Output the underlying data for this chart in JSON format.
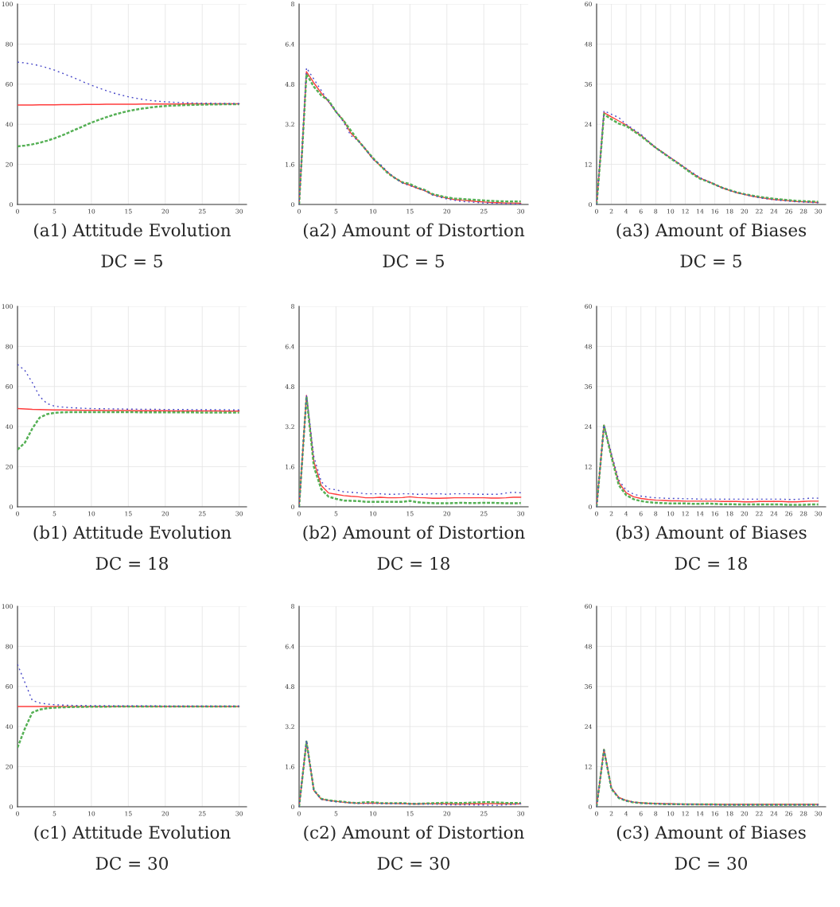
{
  "chart_data": [
    {
      "type": "line",
      "title": "(a1) Attitude Evolution",
      "subtitle": "DC = 5",
      "x": [
        0,
        1,
        2,
        3,
        4,
        5,
        6,
        7,
        8,
        9,
        10,
        11,
        12,
        13,
        14,
        15,
        16,
        17,
        18,
        19,
        20,
        21,
        22,
        23,
        24,
        25,
        26,
        27,
        28,
        29,
        30
      ],
      "xlim": [
        0,
        31
      ],
      "xticks": [
        0,
        5,
        10,
        15,
        20,
        25,
        30
      ],
      "ylim": [
        0,
        100
      ],
      "yticks": [
        0,
        20,
        40,
        60,
        80,
        100
      ],
      "grid": true,
      "series": [
        {
          "color": "#4848c8",
          "line_style": "dashed",
          "values": [
            71,
            70.6,
            70,
            69.2,
            68.2,
            67,
            65.6,
            64.1,
            62.6,
            61,
            59.5,
            58.1,
            56.8,
            55.6,
            54.6,
            53.7,
            53,
            52.4,
            51.9,
            51.5,
            51.2,
            51,
            50.8,
            50.7,
            50.6,
            50.5,
            50.5,
            50.4,
            50.4,
            50.3,
            50.3
          ]
        },
        {
          "color": "#ff3c3c",
          "line_style": "solid",
          "values": [
            49.6,
            49.6,
            49.6,
            49.7,
            49.7,
            49.7,
            49.8,
            49.8,
            49.8,
            49.9,
            49.9,
            49.9,
            50,
            50,
            50,
            50,
            50,
            50.1,
            50.1,
            50.1,
            50.1,
            50.1,
            50.1,
            50.2,
            50.2,
            50.2,
            50.2,
            50.2,
            50.2,
            50.2,
            50.2
          ]
        },
        {
          "color": "#55b055",
          "line_style": "dashed",
          "values": [
            29,
            29.4,
            30,
            30.8,
            31.8,
            33,
            34.4,
            36,
            37.6,
            39.2,
            40.8,
            42.2,
            43.5,
            44.7,
            45.7,
            46.6,
            47.3,
            47.9,
            48.4,
            48.8,
            49.1,
            49.3,
            49.5,
            49.6,
            49.7,
            49.8,
            49.9,
            49.9,
            50,
            50,
            50
          ]
        }
      ]
    },
    {
      "type": "line",
      "title": "(a2) Amount of Distortion",
      "subtitle": "DC = 5",
      "x": [
        0,
        1,
        2,
        3,
        4,
        5,
        6,
        7,
        8,
        9,
        10,
        11,
        12,
        13,
        14,
        15,
        16,
        17,
        18,
        19,
        20,
        21,
        22,
        23,
        24,
        25,
        26,
        27,
        28,
        29,
        30
      ],
      "xlim": [
        0,
        31
      ],
      "xticks": [
        0,
        5,
        10,
        15,
        20,
        25,
        30
      ],
      "ylim": [
        0,
        8
      ],
      "yticks": [
        0,
        1.6,
        3.2,
        4.8,
        6.4,
        8
      ],
      "grid": true,
      "series": [
        {
          "color": "#4848c8",
          "line_style": "dashed",
          "values": [
            0,
            5.45,
            5.0,
            4.55,
            4.1,
            3.7,
            3.3,
            2.75,
            2.55,
            2.2,
            1.8,
            1.6,
            1.3,
            1.05,
            0.85,
            0.75,
            0.65,
            0.55,
            0.38,
            0.3,
            0.22,
            0.17,
            0.12,
            0.1,
            0.08,
            0.06,
            0.05,
            0.04,
            0.03,
            0.02,
            0.02
          ]
        },
        {
          "color": "#ff3c3c",
          "line_style": "solid",
          "values": [
            0,
            5.3,
            4.85,
            4.45,
            4.1,
            3.7,
            3.35,
            2.85,
            2.55,
            2.2,
            1.82,
            1.55,
            1.28,
            1.05,
            0.87,
            0.77,
            0.65,
            0.55,
            0.4,
            0.32,
            0.25,
            0.2,
            0.17,
            0.15,
            0.12,
            0.1,
            0.08,
            0.07,
            0.06,
            0.06,
            0.05
          ]
        },
        {
          "color": "#55b055",
          "line_style": "dashed",
          "values": [
            0,
            5.2,
            4.7,
            4.35,
            4.15,
            3.7,
            3.35,
            2.95,
            2.55,
            2.2,
            1.85,
            1.55,
            1.25,
            1.05,
            0.88,
            0.82,
            0.67,
            0.58,
            0.42,
            0.35,
            0.28,
            0.24,
            0.22,
            0.2,
            0.18,
            0.16,
            0.14,
            0.13,
            0.12,
            0.12,
            0.12
          ]
        }
      ]
    },
    {
      "type": "line",
      "title": "(a3) Amount of Biases",
      "subtitle": "DC = 5",
      "x": [
        0,
        1,
        2,
        3,
        4,
        5,
        6,
        7,
        8,
        9,
        10,
        11,
        12,
        13,
        14,
        15,
        16,
        17,
        18,
        19,
        20,
        21,
        22,
        23,
        24,
        25,
        26,
        27,
        28,
        29,
        30
      ],
      "xlim": [
        0,
        31
      ],
      "xticks": [
        0,
        2,
        4,
        6,
        8,
        10,
        12,
        14,
        16,
        18,
        20,
        22,
        24,
        26,
        28,
        30
      ],
      "ylim": [
        0,
        60
      ],
      "yticks": [
        0,
        12,
        24,
        36,
        48,
        60
      ],
      "grid": true,
      "series": [
        {
          "color": "#4848c8",
          "line_style": "dashed",
          "values": [
            0,
            28,
            27,
            26,
            24,
            22.5,
            21,
            19,
            17,
            15.5,
            14,
            12.5,
            11,
            9.5,
            8,
            7,
            6,
            5,
            4.2,
            3.5,
            3,
            2.5,
            2,
            1.7,
            1.4,
            1.2,
            1,
            0.8,
            0.7,
            0.6,
            0.5
          ]
        },
        {
          "color": "#ff3c3c",
          "line_style": "solid",
          "values": [
            0,
            27.5,
            26.2,
            25,
            23.8,
            22.2,
            20.7,
            18.8,
            17,
            15.5,
            14,
            12.5,
            10.9,
            9.3,
            7.9,
            7,
            6,
            5,
            4.2,
            3.5,
            3,
            2.5,
            2.1,
            1.8,
            1.5,
            1.3,
            1.1,
            0.9,
            0.8,
            0.7,
            0.6
          ]
        },
        {
          "color": "#55b055",
          "line_style": "dashed",
          "values": [
            0,
            27,
            25.5,
            24.2,
            23.5,
            22,
            20.5,
            18.7,
            17,
            15.4,
            13.8,
            12.3,
            10.7,
            9.1,
            7.7,
            6.9,
            6,
            5,
            4.3,
            3.6,
            3.1,
            2.7,
            2.3,
            2,
            1.7,
            1.5,
            1.3,
            1.1,
            1,
            0.9,
            0.8
          ]
        }
      ]
    },
    {
      "type": "line",
      "title": "(b1) Attitude Evolution",
      "subtitle": "DC = 18",
      "x": [
        0,
        1,
        2,
        3,
        4,
        5,
        6,
        7,
        8,
        9,
        10,
        11,
        12,
        13,
        14,
        15,
        16,
        17,
        18,
        19,
        20,
        21,
        22,
        23,
        24,
        25,
        26,
        27,
        28,
        29,
        30
      ],
      "xlim": [
        0,
        31
      ],
      "xticks": [
        0,
        5,
        10,
        15,
        20,
        25,
        30
      ],
      "ylim": [
        0,
        100
      ],
      "yticks": [
        0,
        20,
        40,
        60,
        80,
        100
      ],
      "grid": true,
      "series": [
        {
          "color": "#4848c8",
          "line_style": "dashed",
          "values": [
            71,
            68,
            62,
            55,
            51.5,
            50.2,
            49.8,
            49.5,
            49.3,
            49.1,
            49,
            48.9,
            48.9,
            48.8,
            48.8,
            48.7,
            48.7,
            48.6,
            48.6,
            48.6,
            48.5,
            48.5,
            48.5,
            48.5,
            48.4,
            48.4,
            48.4,
            48.4,
            48.4,
            48.3,
            48.3
          ]
        },
        {
          "color": "#ff3c3c",
          "line_style": "solid",
          "values": [
            49,
            48.8,
            48.6,
            48.5,
            48.4,
            48.3,
            48.3,
            48.2,
            48.2,
            48.1,
            48.1,
            48.1,
            48,
            48,
            48,
            48,
            47.9,
            47.9,
            47.9,
            47.9,
            47.9,
            47.8,
            47.8,
            47.8,
            47.8,
            47.8,
            47.8,
            47.8,
            47.7,
            47.7,
            47.7
          ]
        },
        {
          "color": "#55b055",
          "line_style": "dashed",
          "values": [
            28.5,
            32,
            39,
            44.5,
            46.2,
            46.9,
            47.1,
            47.2,
            47.2,
            47.2,
            47.2,
            47.2,
            47.2,
            47.2,
            47.2,
            47.2,
            47.2,
            47.1,
            47.1,
            47.1,
            47.1,
            47.1,
            47.1,
            47.1,
            47.1,
            47,
            47,
            47,
            47,
            47,
            47
          ]
        }
      ]
    },
    {
      "type": "line",
      "title": "(b2) Amount of Distortion",
      "subtitle": "DC = 18",
      "x": [
        0,
        1,
        2,
        3,
        4,
        5,
        6,
        7,
        8,
        9,
        10,
        11,
        12,
        13,
        14,
        15,
        16,
        17,
        18,
        19,
        20,
        21,
        22,
        23,
        24,
        25,
        26,
        27,
        28,
        29,
        30
      ],
      "xlim": [
        0,
        31
      ],
      "xticks": [
        0,
        5,
        10,
        15,
        20,
        25,
        30
      ],
      "ylim": [
        0,
        8
      ],
      "yticks": [
        0,
        1.6,
        3.2,
        4.8,
        6.4,
        8
      ],
      "grid": true,
      "series": [
        {
          "color": "#4848c8",
          "line_style": "dashed",
          "values": [
            0,
            4.45,
            2.0,
            1.0,
            0.72,
            0.68,
            0.6,
            0.58,
            0.56,
            0.52,
            0.52,
            0.52,
            0.5,
            0.5,
            0.52,
            0.52,
            0.5,
            0.5,
            0.52,
            0.52,
            0.5,
            0.52,
            0.52,
            0.52,
            0.5,
            0.5,
            0.5,
            0.5,
            0.55,
            0.58,
            0.56
          ]
        },
        {
          "color": "#ff3c3c",
          "line_style": "solid",
          "values": [
            0,
            4.45,
            1.8,
            0.85,
            0.55,
            0.5,
            0.45,
            0.42,
            0.4,
            0.36,
            0.36,
            0.38,
            0.36,
            0.36,
            0.37,
            0.4,
            0.37,
            0.36,
            0.34,
            0.34,
            0.35,
            0.36,
            0.36,
            0.36,
            0.36,
            0.36,
            0.35,
            0.35,
            0.36,
            0.38,
            0.38
          ]
        },
        {
          "color": "#55b055",
          "line_style": "dashed",
          "values": [
            0,
            4.4,
            1.6,
            0.7,
            0.4,
            0.32,
            0.25,
            0.24,
            0.23,
            0.2,
            0.2,
            0.2,
            0.2,
            0.2,
            0.2,
            0.24,
            0.18,
            0.16,
            0.15,
            0.14,
            0.14,
            0.15,
            0.16,
            0.15,
            0.15,
            0.16,
            0.16,
            0.15,
            0.14,
            0.14,
            0.15
          ]
        }
      ]
    },
    {
      "type": "line",
      "title": "(b3) Amount of Biases",
      "subtitle": "DC = 18",
      "x": [
        0,
        1,
        2,
        3,
        4,
        5,
        6,
        7,
        8,
        9,
        10,
        11,
        12,
        13,
        14,
        15,
        16,
        17,
        18,
        19,
        20,
        21,
        22,
        23,
        24,
        25,
        26,
        27,
        28,
        29,
        30
      ],
      "xlim": [
        0,
        31
      ],
      "xticks": [
        0,
        2,
        4,
        6,
        8,
        10,
        12,
        14,
        16,
        18,
        20,
        22,
        24,
        26,
        28,
        30
      ],
      "ylim": [
        0,
        60
      ],
      "yticks": [
        0,
        12,
        24,
        36,
        48,
        60
      ],
      "grid": true,
      "series": [
        {
          "color": "#4848c8",
          "line_style": "dashed",
          "values": [
            0,
            24.5,
            16,
            8,
            5,
            3.8,
            3.2,
            2.9,
            2.7,
            2.6,
            2.5,
            2.5,
            2.4,
            2.4,
            2.3,
            2.3,
            2.3,
            2.3,
            2.3,
            2.3,
            2.3,
            2.3,
            2.3,
            2.3,
            2.3,
            2.3,
            2.2,
            2.2,
            2.4,
            2.6,
            2.6
          ]
        },
        {
          "color": "#ff3c3c",
          "line_style": "solid",
          "values": [
            0,
            24.5,
            15.5,
            7.3,
            4.2,
            3,
            2.5,
            2.2,
            2,
            1.9,
            1.8,
            1.8,
            1.7,
            1.7,
            1.7,
            1.7,
            1.7,
            1.6,
            1.6,
            1.6,
            1.5,
            1.5,
            1.6,
            1.6,
            1.6,
            1.6,
            1.5,
            1.5,
            1.6,
            1.7,
            1.7
          ]
        },
        {
          "color": "#55b055",
          "line_style": "dashed",
          "values": [
            0,
            24.3,
            15,
            6.5,
            3.5,
            2.3,
            1.7,
            1.4,
            1.2,
            1.1,
            1,
            1,
            1,
            0.9,
            0.9,
            1,
            0.9,
            0.8,
            0.8,
            0.7,
            0.7,
            0.7,
            0.7,
            0.7,
            0.7,
            0.7,
            0.6,
            0.6,
            0.6,
            0.7,
            0.7
          ]
        }
      ]
    },
    {
      "type": "line",
      "title": "(c1) Attitude Evolution",
      "subtitle": "DC = 30",
      "x": [
        0,
        1,
        2,
        3,
        4,
        5,
        6,
        7,
        8,
        9,
        10,
        11,
        12,
        13,
        14,
        15,
        16,
        17,
        18,
        19,
        20,
        21,
        22,
        23,
        24,
        25,
        26,
        27,
        28,
        29,
        30
      ],
      "xlim": [
        0,
        31
      ],
      "xticks": [
        0,
        5,
        10,
        15,
        20,
        25,
        30
      ],
      "ylim": [
        0,
        100
      ],
      "yticks": [
        0,
        20,
        40,
        60,
        80,
        100
      ],
      "grid": true,
      "series": [
        {
          "color": "#4848c8",
          "line_style": "dashed",
          "values": [
            71,
            62,
            53,
            51.8,
            51.2,
            50.9,
            50.7,
            50.6,
            50.5,
            50.5,
            50.4,
            50.4,
            50.4,
            50.3,
            50.3,
            50.3,
            50.3,
            50.3,
            50.3,
            50.3,
            50.2,
            50.2,
            50.2,
            50.2,
            50.2,
            50.2,
            50.2,
            50.2,
            50.2,
            50.2,
            50.2
          ]
        },
        {
          "color": "#ff3c3c",
          "line_style": "solid",
          "values": [
            50,
            50,
            50,
            50,
            50,
            50,
            50,
            50,
            50,
            50,
            50,
            50,
            50,
            50,
            50,
            50,
            50,
            50,
            50,
            50,
            50,
            50,
            50,
            50,
            50,
            50,
            50,
            50,
            50,
            50,
            50
          ]
        },
        {
          "color": "#55b055",
          "line_style": "dashed",
          "values": [
            29.5,
            39,
            47,
            48.5,
            49.1,
            49.4,
            49.6,
            49.7,
            49.8,
            49.8,
            49.9,
            49.9,
            49.9,
            50,
            50,
            50,
            50,
            50,
            50,
            50,
            50,
            50,
            50,
            50,
            50,
            50,
            50,
            50,
            50,
            50,
            50
          ]
        }
      ]
    },
    {
      "type": "line",
      "title": "(c2) Amount of Distortion",
      "subtitle": "DC = 30",
      "x": [
        0,
        1,
        2,
        3,
        4,
        5,
        6,
        7,
        8,
        9,
        10,
        11,
        12,
        13,
        14,
        15,
        16,
        17,
        18,
        19,
        20,
        21,
        22,
        23,
        24,
        25,
        26,
        27,
        28,
        29,
        30
      ],
      "xlim": [
        0,
        31
      ],
      "xticks": [
        0,
        5,
        10,
        15,
        20,
        25,
        30
      ],
      "ylim": [
        0,
        8
      ],
      "yticks": [
        0,
        1.6,
        3.2,
        4.8,
        6.4,
        8
      ],
      "grid": true,
      "series": [
        {
          "color": "#4848c8",
          "line_style": "dashed",
          "values": [
            0,
            2.65,
            0.65,
            0.3,
            0.24,
            0.2,
            0.18,
            0.15,
            0.14,
            0.13,
            0.13,
            0.13,
            0.12,
            0.12,
            0.12,
            0.11,
            0.11,
            0.11,
            0.1,
            0.1,
            0.08,
            0.08,
            0.08,
            0.08,
            0.07,
            0.07,
            0.06,
            0.06,
            0.08,
            0.1,
            0.12
          ]
        },
        {
          "color": "#ff3c3c",
          "line_style": "solid",
          "values": [
            0,
            2.6,
            0.65,
            0.3,
            0.25,
            0.22,
            0.18,
            0.16,
            0.14,
            0.14,
            0.15,
            0.14,
            0.13,
            0.13,
            0.12,
            0.12,
            0.11,
            0.12,
            0.12,
            0.12,
            0.12,
            0.11,
            0.11,
            0.12,
            0.12,
            0.12,
            0.13,
            0.12,
            0.12,
            0.11,
            0.12
          ]
        },
        {
          "color": "#55b055",
          "line_style": "dashed",
          "values": [
            0,
            2.6,
            0.66,
            0.32,
            0.26,
            0.22,
            0.2,
            0.16,
            0.15,
            0.18,
            0.18,
            0.15,
            0.14,
            0.14,
            0.15,
            0.12,
            0.12,
            0.13,
            0.14,
            0.15,
            0.16,
            0.15,
            0.15,
            0.16,
            0.17,
            0.18,
            0.18,
            0.17,
            0.15,
            0.15,
            0.15
          ]
        }
      ]
    },
    {
      "type": "line",
      "title": "(c3) Amount of Biases",
      "subtitle": "DC = 30",
      "x": [
        0,
        1,
        2,
        3,
        4,
        5,
        6,
        7,
        8,
        9,
        10,
        11,
        12,
        13,
        14,
        15,
        16,
        17,
        18,
        19,
        20,
        21,
        22,
        23,
        24,
        25,
        26,
        27,
        28,
        29,
        30
      ],
      "xlim": [
        0,
        31
      ],
      "xticks": [
        0,
        2,
        4,
        6,
        8,
        10,
        12,
        14,
        16,
        18,
        20,
        22,
        24,
        26,
        28,
        30
      ],
      "ylim": [
        0,
        60
      ],
      "yticks": [
        0,
        12,
        24,
        36,
        48,
        60
      ],
      "grid": true,
      "series": [
        {
          "color": "#4848c8",
          "line_style": "dashed",
          "values": [
            0,
            17,
            5.5,
            2.7,
            1.8,
            1.4,
            1.1,
            1,
            0.9,
            0.9,
            0.8,
            0.8,
            0.7,
            0.7,
            0.7,
            0.6,
            0.6,
            0.6,
            0.6,
            0.6,
            0.6,
            0.6,
            0.6,
            0.6,
            0.6,
            0.6,
            0.6,
            0.6,
            0.6,
            0.6,
            0.6
          ]
        },
        {
          "color": "#ff3c3c",
          "line_style": "solid",
          "values": [
            0,
            17.2,
            5.6,
            2.8,
            1.9,
            1.4,
            1.2,
            1,
            1,
            0.9,
            0.9,
            0.8,
            0.8,
            0.8,
            0.7,
            0.7,
            0.7,
            0.7,
            0.7,
            0.7,
            0.7,
            0.7,
            0.7,
            0.7,
            0.7,
            0.7,
            0.7,
            0.7,
            0.7,
            0.7,
            0.7
          ]
        },
        {
          "color": "#55b055",
          "line_style": "dashed",
          "values": [
            0,
            17,
            5.4,
            2.6,
            1.8,
            1.3,
            1.1,
            1,
            0.9,
            0.8,
            0.8,
            0.8,
            0.7,
            0.7,
            0.7,
            0.7,
            0.7,
            0.6,
            0.6,
            0.6,
            0.6,
            0.6,
            0.6,
            0.6,
            0.6,
            0.6,
            0.6,
            0.6,
            0.6,
            0.6,
            0.6
          ]
        }
      ]
    }
  ]
}
